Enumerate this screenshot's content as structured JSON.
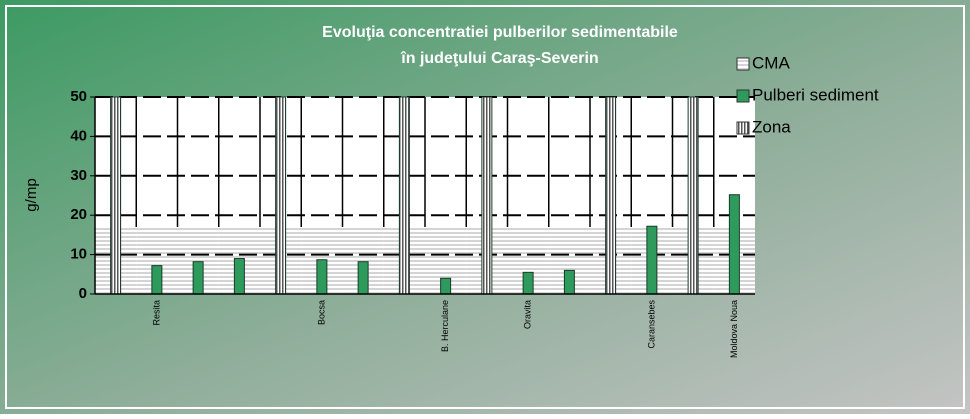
{
  "chart_data": {
    "type": "bar",
    "title": [
      "Evoluţia concentratiei  pulberilor sedimentabile",
      "în judeţului Caraş-Severin"
    ],
    "y_label": "g/mp",
    "categories": [
      null,
      "Resita",
      null,
      null,
      null,
      "Bocsa",
      null,
      null,
      "B. Herculane",
      null,
      "Oravita",
      null,
      null,
      "Caransebes",
      null,
      "Moldova Noua"
    ],
    "series": [
      {
        "name": "CMA",
        "color": "#ffffff",
        "values": [
          17,
          17,
          17,
          17,
          17,
          17,
          17,
          17,
          17,
          17,
          17,
          17,
          17,
          17,
          17,
          17
        ]
      },
      {
        "name": "Pulberi sediment",
        "color": "#2e9a5c",
        "values": [
          null,
          7.2,
          8.2,
          9.0,
          null,
          8.7,
          8.2,
          null,
          4,
          null,
          5.5,
          6.0,
          null,
          17.2,
          null,
          25.2
        ]
      },
      {
        "name": "Zona",
        "color": "#d0d0d0",
        "values": [
          50,
          null,
          null,
          null,
          50,
          null,
          null,
          50,
          null,
          50,
          null,
          null,
          50,
          null,
          50,
          null
        ]
      }
    ],
    "ylim": [
      0,
      50
    ],
    "yticks": [
      0,
      10,
      20,
      30,
      40,
      50
    ],
    "grid": true,
    "legend": "right"
  }
}
